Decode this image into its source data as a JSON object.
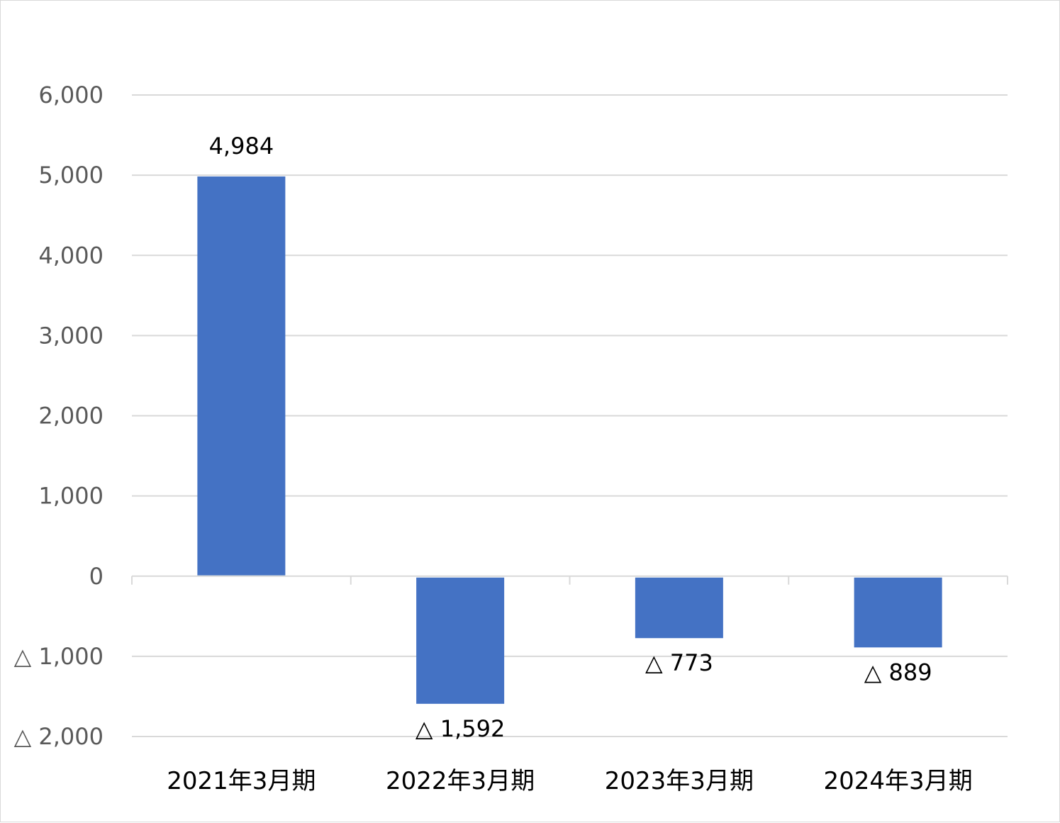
{
  "chart_data": {
    "type": "bar",
    "categories": [
      "2021年3月期",
      "2022年3月期",
      "2023年3月期",
      "2024年3月期"
    ],
    "values": [
      4984,
      -1592,
      -773,
      -889
    ],
    "data_labels": [
      "4,984",
      "△ 1,592",
      "△ 773",
      "△ 889"
    ],
    "y_ticks": [
      {
        "value": 6000,
        "label": "6,000"
      },
      {
        "value": 5000,
        "label": "5,000"
      },
      {
        "value": 4000,
        "label": "4,000"
      },
      {
        "value": 3000,
        "label": "3,000"
      },
      {
        "value": 2000,
        "label": "2,000"
      },
      {
        "value": 1000,
        "label": "1,000"
      },
      {
        "value": 0,
        "label": "0"
      },
      {
        "value": -1000,
        "label": "△ 1,000"
      },
      {
        "value": -2000,
        "label": "△ 2,000"
      }
    ],
    "ylim": [
      -2000,
      6000
    ],
    "grid": true,
    "legend": "none",
    "colors": {
      "bar": "#4472c4",
      "grid": "#d9d9d9",
      "axis": "#d9d9d9"
    }
  }
}
